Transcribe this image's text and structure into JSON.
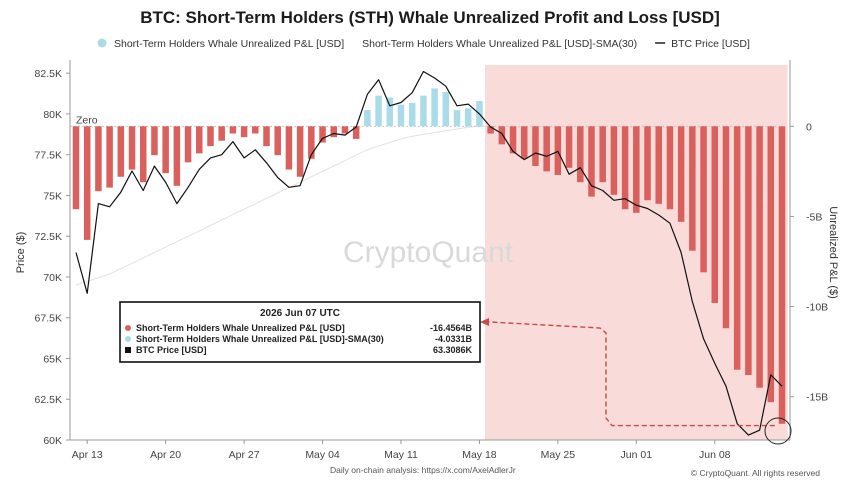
{
  "chart_data": {
    "type": "bar",
    "title": "BTC: Short-Term Holders (STH) Whale Unrealized Profit and Loss [USD]",
    "legend": [
      {
        "name": "Short-Term Holders Whale Unrealized P&L [USD]",
        "color": "#a9dbe8",
        "marker": "dot"
      },
      {
        "name": "Short-Term Holders Whale Unrealized P&L [USD]-SMA(30)",
        "color": "#dddddd",
        "marker": "none"
      },
      {
        "name": "BTC Price [USD]",
        "color": "#111111",
        "marker": "line"
      }
    ],
    "y_left": {
      "label": "Price ($)",
      "range": [
        60000,
        83000
      ],
      "ticks": [
        60000,
        62500,
        65000,
        67500,
        70000,
        72500,
        75000,
        77500,
        80000,
        82500
      ],
      "tick_labels": [
        "60K",
        "62.5K",
        "65K",
        "67.5K",
        "70K",
        "72.5K",
        "75K",
        "77.5K",
        "80K",
        "82.5K"
      ]
    },
    "y_right": {
      "label": "Unrealized P&L ($)",
      "range": [
        -17.4,
        3.4
      ],
      "ticks": [
        0,
        -5,
        -10,
        -15
      ],
      "tick_labels": [
        "0",
        "-5B",
        "-10B",
        "-15B"
      ]
    },
    "x_ticks": [
      "Apr 13",
      "Apr 20",
      "Apr 27",
      "May 04",
      "May 11",
      "May 18",
      "May 25",
      "Jun 01",
      "Jun 08"
    ],
    "zero_label": "Zero",
    "watermark": "CryptoQuant",
    "series": [
      {
        "name": "Short-Term Holders Whale Unrealized P&L [USD]",
        "unit": "B USD",
        "positive_color": "#a9dbe8",
        "negative_color": "#d9605c",
        "values": [
          -4.6,
          -6.3,
          -3.6,
          -3.4,
          -2.8,
          -2.4,
          -3.1,
          -1.6,
          -2.6,
          -3.3,
          -2.0,
          -1.5,
          -1.1,
          -0.8,
          -0.4,
          -0.6,
          -0.4,
          -1.1,
          -1.6,
          -2.4,
          -2.8,
          -1.8,
          -0.9,
          -0.6,
          -0.4,
          -0.7,
          0.9,
          1.7,
          1.6,
          1.2,
          1.3,
          1.7,
          2.1,
          1.9,
          0.9,
          1.0,
          1.4,
          -0.4,
          -1.0,
          -1.5,
          -1.8,
          -2.2,
          -2.5,
          -2.7,
          -2.3,
          -3.1,
          -3.9,
          -3.1,
          -3.8,
          -4.6,
          -4.8,
          -4.1,
          -4.3,
          -4.6,
          -5.3,
          -6.9,
          -8.1,
          -9.8,
          -11.2,
          -13.5,
          -13.8,
          -14.5,
          -15.3,
          -16.5
        ]
      },
      {
        "name": "Short-Term Holders Whale Unrealized P&L [USD]-SMA(30)",
        "unit": "B USD",
        "values": [
          -8.8,
          -8.6,
          -8.4,
          -8.2,
          -7.9,
          -7.6,
          -7.3,
          -7.0,
          -6.7,
          -6.4,
          -6.1,
          -5.8,
          -5.5,
          -5.2,
          -4.9,
          -4.6,
          -4.3,
          -4.0,
          -3.7,
          -3.4,
          -3.1,
          -2.8,
          -2.5,
          -2.2,
          -1.9,
          -1.6,
          -1.3,
          -1.1,
          -0.9,
          -0.7,
          -0.55,
          -0.45,
          -0.35,
          -0.25,
          -0.15,
          -0.05,
          0.0,
          0.0,
          0.0,
          -0.05,
          -0.1,
          -0.15,
          -0.2,
          -0.25,
          -0.3,
          -0.4,
          -0.5,
          -0.6,
          -0.7,
          -0.85,
          -1.0,
          -1.15,
          -1.3,
          -1.5,
          -1.7,
          -1.9,
          -2.15,
          -2.4,
          -2.7,
          -3.0,
          -3.3,
          -3.6,
          -3.85,
          -4.03
        ]
      },
      {
        "name": "BTC Price [USD]",
        "unit": "USD",
        "values": [
          71500,
          69000,
          74500,
          74300,
          75200,
          76500,
          75300,
          76800,
          75800,
          74500,
          75500,
          76600,
          77300,
          77500,
          78300,
          77300,
          77800,
          77000,
          76100,
          75500,
          75600,
          77500,
          78500,
          78800,
          78700,
          79200,
          81200,
          82100,
          80500,
          80700,
          81300,
          82600,
          82200,
          81700,
          80500,
          80600,
          80000,
          79200,
          78800,
          77700,
          77200,
          77600,
          77400,
          77700,
          76300,
          76700,
          75600,
          75300,
          74700,
          74800,
          74400,
          74200,
          73800,
          73300,
          71500,
          68500,
          66200,
          64700,
          63300,
          61000,
          60300,
          60600,
          64000,
          63300
        ]
      }
    ],
    "highlight_region": {
      "from_index": 37,
      "to_index": 64,
      "color": "#f9dcda"
    },
    "tooltip": {
      "date": "2026 Jun 07 UTC",
      "rows": [
        {
          "label": "Short-Term Holders Whale Unrealized P&L [USD]",
          "value": "-16.4564B",
          "color": "#d9605c"
        },
        {
          "label": "Short-Term Holders Whale Unrealized P&L [USD]-SMA(30)",
          "value": "-4.0331B",
          "color": "#a9dbe8"
        },
        {
          "label": "BTC Price [USD]",
          "value": "63.3086K",
          "color": "#111111"
        }
      ]
    },
    "grid": false,
    "legend_position": "top-center"
  },
  "footer": {
    "left": "Daily on-chain analysis: https://x.com/AxelAdlerJr",
    "right": "© CryptoQuant. All rights reserved"
  }
}
